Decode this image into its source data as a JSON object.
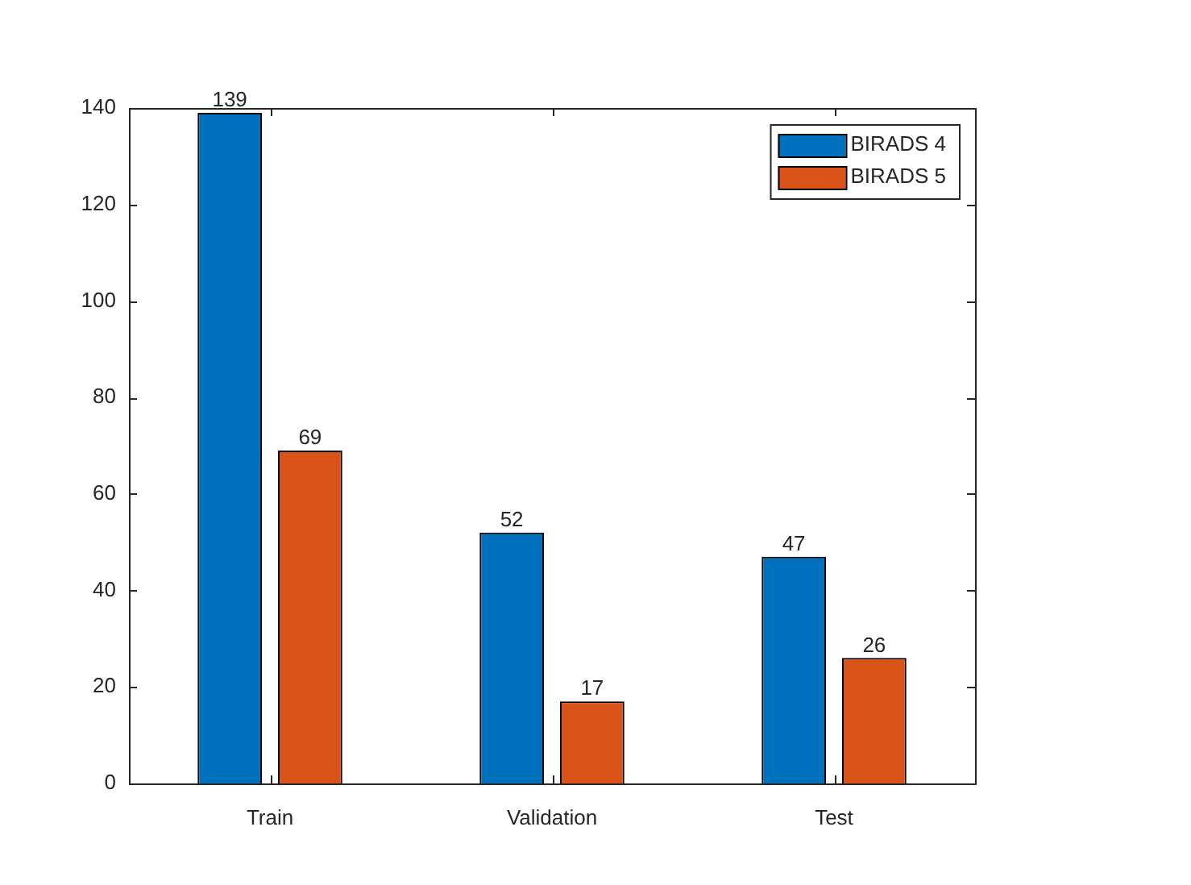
{
  "chart_data": {
    "type": "bar",
    "categories": [
      "Train",
      "Validation",
      "Test"
    ],
    "series": [
      {
        "name": "BIRADS 4",
        "color": "#0072bd",
        "values": [
          139,
          52,
          47
        ]
      },
      {
        "name": "BIRADS 5",
        "color": "#d95319",
        "values": [
          69,
          17,
          26
        ]
      }
    ],
    "ylim": [
      0,
      140
    ],
    "yticks": [
      0,
      20,
      40,
      60,
      80,
      100,
      120,
      140
    ],
    "grid": false,
    "legend": "top right",
    "data_labels": true
  }
}
